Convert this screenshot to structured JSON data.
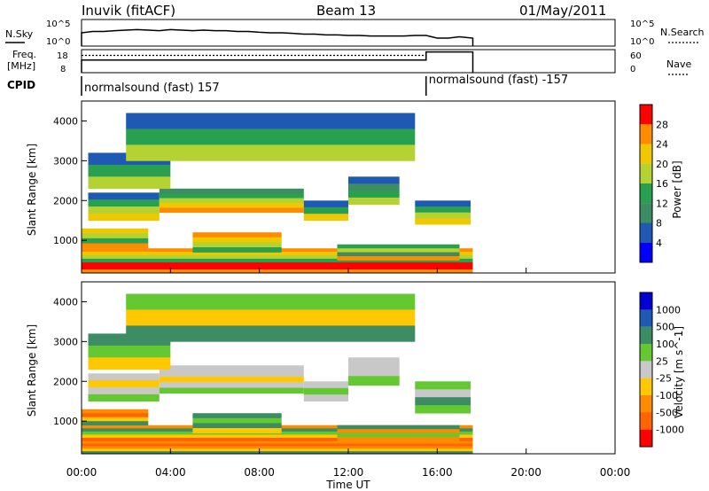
{
  "header": {
    "station": "Inuvik (fitACF)",
    "beam": "Beam 13",
    "date": "01/May/2011"
  },
  "colors": {
    "power_scale": [
      "#0000ff",
      "#1e5ab4",
      "#3c8c64",
      "#28a050",
      "#b4d232",
      "#f0c800",
      "#ff8c00",
      "#ff0000"
    ],
    "velocity_scale": [
      "#0000d2",
      "#1e5ab4",
      "#3c8c64",
      "#64c832",
      "#c8c8c8",
      "#ffc800",
      "#ff8c00",
      "#ff6400",
      "#ff0000"
    ],
    "line": "#000000"
  },
  "chart_data": [
    {
      "type": "line",
      "name": "top-panel",
      "left_label": "N.Sky",
      "right_label": "N.Search",
      "left_ticks": [
        "10^5",
        "10^0"
      ],
      "right_ticks": [
        "10^5",
        "10^0"
      ],
      "x_hours": [
        0.0,
        0.5,
        1.0,
        1.5,
        2.0,
        2.5,
        3.0,
        3.5,
        4.0,
        4.5,
        5.0,
        5.5,
        6.0,
        6.5,
        7.0,
        7.5,
        8.0,
        8.5,
        9.0,
        9.5,
        10.0,
        10.5,
        11.0,
        11.5,
        12.0,
        12.5,
        13.0,
        13.5,
        14.0,
        14.5,
        15.0,
        15.5,
        16.0,
        16.5,
        17.0,
        17.6
      ],
      "n_sky_level": [
        0.5,
        0.55,
        0.55,
        0.58,
        0.6,
        0.62,
        0.6,
        0.58,
        0.62,
        0.6,
        0.58,
        0.6,
        0.58,
        0.58,
        0.55,
        0.55,
        0.52,
        0.5,
        0.5,
        0.48,
        0.45,
        0.45,
        0.42,
        0.42,
        0.4,
        0.4,
        0.38,
        0.38,
        0.38,
        0.38,
        0.4,
        0.4,
        0.3,
        0.3,
        0.35,
        0.3
      ]
    },
    {
      "type": "line",
      "name": "freq-nave",
      "left_label": "Freq.",
      "left_unit": "[MHz]",
      "right_label": "Nave",
      "left_ticks": [
        "18",
        "8"
      ],
      "right_ticks": [
        "60",
        "0"
      ],
      "freq_segments": [
        {
          "start": 0.0,
          "end": 15.5,
          "level": 0.55
        },
        {
          "start": 15.5,
          "end": 17.6,
          "level": 0.9
        }
      ],
      "nave_level": 0.75
    },
    {
      "type": "table",
      "name": "cpid",
      "label": "CPID",
      "segments": [
        {
          "start": 0.0,
          "text": "normalsound (fast) 157"
        },
        {
          "start": 15.5,
          "text": "normalsound (fast) -157"
        }
      ]
    },
    {
      "type": "heatmap",
      "name": "power",
      "ylabel": "Slant Range [km]",
      "yticks": [
        1000,
        2000,
        3000,
        4000
      ],
      "ylim": [
        180,
        4500
      ],
      "colorbar_label": "Power [dB]",
      "colorbar_ticks": [
        28,
        24,
        20,
        16,
        12,
        8,
        4
      ],
      "bands": [
        {
          "x": [
            0.0,
            17.6
          ],
          "y": [
            180,
            450
          ],
          "colors": [
            7,
            7,
            6
          ]
        },
        {
          "x": [
            0.0,
            17.6
          ],
          "y": [
            450,
            800
          ],
          "colors": [
            6,
            5,
            4,
            3
          ]
        },
        {
          "x": [
            0.0,
            3.0
          ],
          "y": [
            800,
            1300
          ],
          "colors": [
            5,
            4,
            3,
            6
          ]
        },
        {
          "x": [
            5.0,
            9.0
          ],
          "y": [
            700,
            1200
          ],
          "colors": [
            6,
            5,
            4,
            3
          ]
        },
        {
          "x": [
            11.5,
            17.0
          ],
          "y": [
            500,
            900
          ],
          "colors": [
            3,
            4,
            2,
            6
          ]
        },
        {
          "x": [
            0.3,
            3.5
          ],
          "y": [
            1500,
            2200
          ],
          "colors": [
            1,
            3,
            4,
            5
          ]
        },
        {
          "x": [
            3.5,
            10.0
          ],
          "y": [
            1700,
            2300
          ],
          "colors": [
            2,
            3,
            4,
            5,
            6
          ]
        },
        {
          "x": [
            10.0,
            12.0
          ],
          "y": [
            1500,
            2000
          ],
          "colors": [
            1,
            3,
            5
          ]
        },
        {
          "x": [
            12.0,
            14.3
          ],
          "y": [
            1900,
            2600
          ],
          "colors": [
            1,
            2,
            3,
            4
          ]
        },
        {
          "x": [
            15.0,
            17.5
          ],
          "y": [
            1400,
            2000
          ],
          "colors": [
            1,
            3,
            4,
            5
          ]
        },
        {
          "x": [
            0.3,
            4.0
          ],
          "y": [
            2300,
            3200
          ],
          "colors": [
            1,
            3,
            4
          ]
        },
        {
          "x": [
            2.0,
            15.0
          ],
          "y": [
            3000,
            4200
          ],
          "colors": [
            1,
            3,
            4
          ]
        }
      ]
    },
    {
      "type": "heatmap",
      "name": "velocity",
      "ylabel": "Slant Range [km]",
      "xlabel": "Time UT",
      "xticks": [
        "00:00",
        "04:00",
        "08:00",
        "12:00",
        "16:00",
        "20:00",
        "00:00"
      ],
      "yticks": [
        1000,
        2000,
        3000,
        4000
      ],
      "ylim": [
        180,
        4500
      ],
      "colorbar_label": "Velocity [m s^-1]",
      "colorbar_ticks": [
        "1000",
        "500",
        "100",
        "25",
        "-25",
        "-100",
        "-500",
        "-1000"
      ],
      "bands": [
        {
          "x": [
            0.0,
            17.6
          ],
          "y": [
            180,
            500
          ],
          "colors": [
            6,
            7,
            6,
            5,
            2
          ]
        },
        {
          "x": [
            0.0,
            17.6
          ],
          "y": [
            500,
            900
          ],
          "colors": [
            6,
            2,
            3,
            5,
            7
          ]
        },
        {
          "x": [
            0.0,
            3.0
          ],
          "y": [
            900,
            1300
          ],
          "colors": [
            6,
            7,
            5,
            2
          ]
        },
        {
          "x": [
            5.0,
            9.0
          ],
          "y": [
            700,
            1200
          ],
          "colors": [
            2,
            3,
            2,
            5
          ]
        },
        {
          "x": [
            11.5,
            17.0
          ],
          "y": [
            500,
            900
          ],
          "colors": [
            2,
            6,
            3,
            6
          ]
        },
        {
          "x": [
            0.3,
            3.5
          ],
          "y": [
            1500,
            2200
          ],
          "colors": [
            4,
            5,
            4,
            3
          ]
        },
        {
          "x": [
            3.5,
            10.0
          ],
          "y": [
            1700,
            2400
          ],
          "colors": [
            4,
            4,
            5,
            4,
            3
          ]
        },
        {
          "x": [
            10.0,
            12.0
          ],
          "y": [
            1500,
            2000
          ],
          "colors": [
            4,
            3,
            4
          ]
        },
        {
          "x": [
            12.0,
            14.3
          ],
          "y": [
            1900,
            2600
          ],
          "colors": [
            4,
            4,
            3
          ]
        },
        {
          "x": [
            15.0,
            17.5
          ],
          "y": [
            1200,
            2000
          ],
          "colors": [
            3,
            4,
            2,
            3
          ]
        },
        {
          "x": [
            0.3,
            4.0
          ],
          "y": [
            2300,
            3200
          ],
          "colors": [
            2,
            3,
            5
          ]
        },
        {
          "x": [
            2.0,
            15.0
          ],
          "y": [
            3000,
            4200
          ],
          "colors": [
            3,
            5,
            2
          ]
        }
      ]
    }
  ]
}
